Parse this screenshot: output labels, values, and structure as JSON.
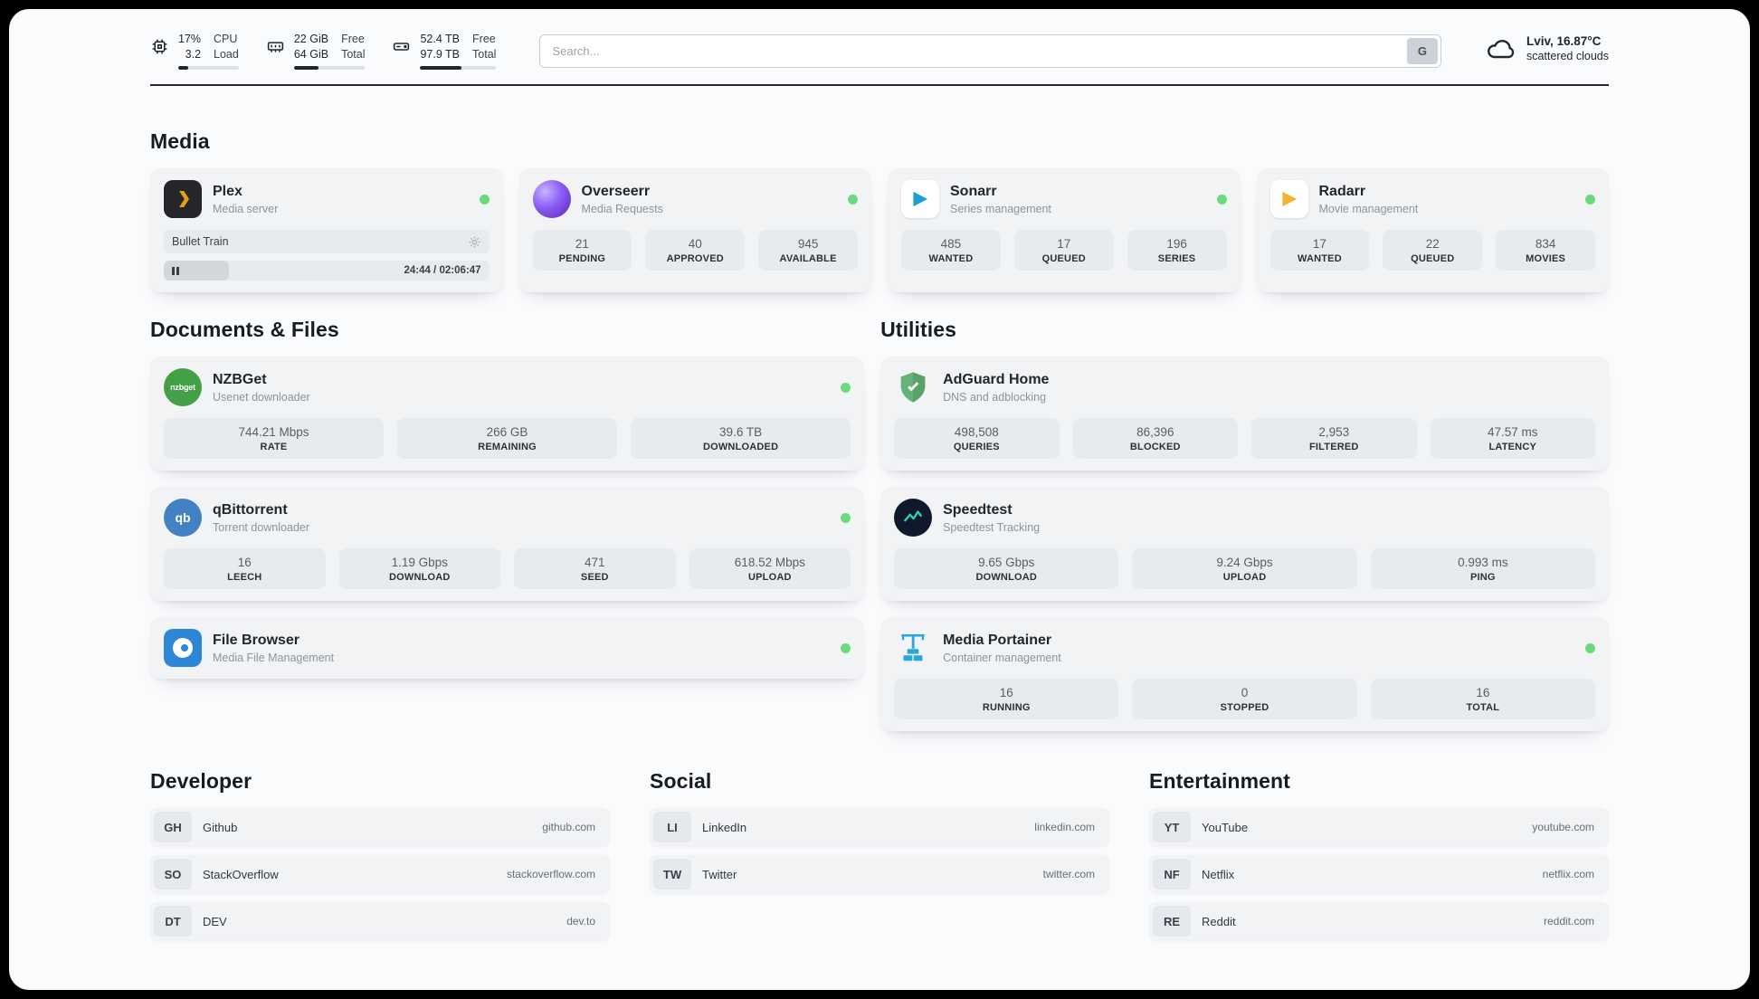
{
  "header": {
    "cpu": {
      "value_top": "17%",
      "value_bottom": "3.2",
      "label_top": "CPU",
      "label_bottom": "Load",
      "progress_pct": 17
    },
    "ram": {
      "value_top": "22 GiB",
      "value_bottom": "64 GiB",
      "label_top": "Free",
      "label_bottom": "Total",
      "progress_pct": 34
    },
    "disk": {
      "value_top": "52.4 TB",
      "value_bottom": "97.9 TB",
      "label_top": "Free",
      "label_bottom": "Total",
      "progress_pct": 54
    },
    "search": {
      "placeholder": "Search...",
      "button_label": "G"
    },
    "weather": {
      "location": "Lviv, 16.87°C",
      "condition": "scattered clouds"
    }
  },
  "colors": {
    "status_online": "#69db7c"
  },
  "sections": {
    "media": {
      "title": "Media",
      "plex": {
        "name": "Plex",
        "description": "Media server",
        "now_playing": "Bullet Train",
        "time": "24:44 / 02:06:47",
        "progress_pct": 20
      },
      "overseerr": {
        "name": "Overseerr",
        "description": "Media Requests",
        "stats": [
          {
            "value": "21",
            "label": "PENDING"
          },
          {
            "value": "40",
            "label": "APPROVED"
          },
          {
            "value": "945",
            "label": "AVAILABLE"
          }
        ]
      },
      "sonarr": {
        "name": "Sonarr",
        "description": "Series management",
        "stats": [
          {
            "value": "485",
            "label": "WANTED"
          },
          {
            "value": "17",
            "label": "QUEUED"
          },
          {
            "value": "196",
            "label": "SERIES"
          }
        ]
      },
      "radarr": {
        "name": "Radarr",
        "description": "Movie management",
        "stats": [
          {
            "value": "17",
            "label": "WANTED"
          },
          {
            "value": "22",
            "label": "QUEUED"
          },
          {
            "value": "834",
            "label": "MOVIES"
          }
        ]
      }
    },
    "documents": {
      "title": "Documents & Files",
      "nzbget": {
        "name": "NZBGet",
        "description": "Usenet downloader",
        "icon_text": "nzbget",
        "stats": [
          {
            "value": "744.21 Mbps",
            "label": "RATE"
          },
          {
            "value": "266 GB",
            "label": "REMAINING"
          },
          {
            "value": "39.6 TB",
            "label": "DOWNLOADED"
          }
        ]
      },
      "qbittorrent": {
        "name": "qBittorrent",
        "description": "Torrent downloader",
        "icon_text": "qb",
        "stats": [
          {
            "value": "16",
            "label": "LEECH"
          },
          {
            "value": "1.19 Gbps",
            "label": "DOWNLOAD"
          },
          {
            "value": "471",
            "label": "SEED"
          },
          {
            "value": "618.52 Mbps",
            "label": "UPLOAD"
          }
        ]
      },
      "filebrowser": {
        "name": "File Browser",
        "description": "Media File Management"
      }
    },
    "utilities": {
      "title": "Utilities",
      "adguard": {
        "name": "AdGuard Home",
        "description": "DNS and adblocking",
        "stats": [
          {
            "value": "498,508",
            "label": "QUERIES"
          },
          {
            "value": "86,396",
            "label": "BLOCKED"
          },
          {
            "value": "2,953",
            "label": "FILTERED"
          },
          {
            "value": "47.57 ms",
            "label": "LATENCY"
          }
        ]
      },
      "speedtest": {
        "name": "Speedtest",
        "description": "Speedtest Tracking",
        "stats": [
          {
            "value": "9.65 Gbps",
            "label": "DOWNLOAD"
          },
          {
            "value": "9.24 Gbps",
            "label": "UPLOAD"
          },
          {
            "value": "0.993 ms",
            "label": "PING"
          }
        ]
      },
      "portainer": {
        "name": "Media Portainer",
        "description": "Container management",
        "stats": [
          {
            "value": "16",
            "label": "RUNNING"
          },
          {
            "value": "0",
            "label": "STOPPED"
          },
          {
            "value": "16",
            "label": "TOTAL"
          }
        ]
      }
    },
    "bookmarks": [
      {
        "title": "Developer",
        "items": [
          {
            "abbr": "GH",
            "name": "Github",
            "url": "github.com"
          },
          {
            "abbr": "SO",
            "name": "StackOverflow",
            "url": "stackoverflow.com"
          },
          {
            "abbr": "DT",
            "name": "DEV",
            "url": "dev.to"
          }
        ]
      },
      {
        "title": "Social",
        "items": [
          {
            "abbr": "LI",
            "name": "LinkedIn",
            "url": "linkedin.com"
          },
          {
            "abbr": "TW",
            "name": "Twitter",
            "url": "twitter.com"
          }
        ]
      },
      {
        "title": "Entertainment",
        "items": [
          {
            "abbr": "YT",
            "name": "YouTube",
            "url": "youtube.com"
          },
          {
            "abbr": "NF",
            "name": "Netflix",
            "url": "netflix.com"
          },
          {
            "abbr": "RE",
            "name": "Reddit",
            "url": "reddit.com"
          }
        ]
      }
    ]
  }
}
